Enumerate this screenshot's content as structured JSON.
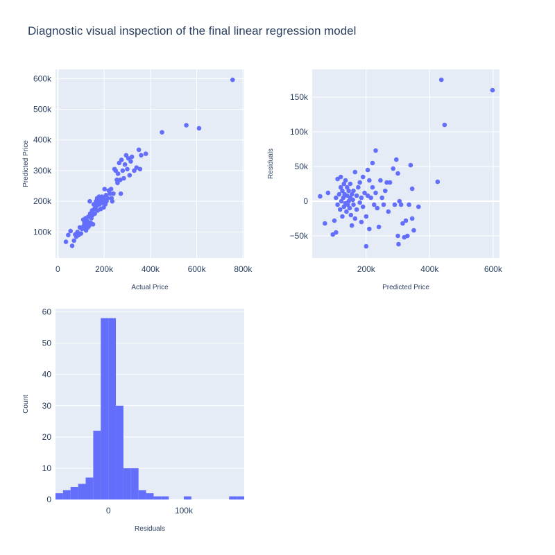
{
  "title": "Diagnostic visual inspection of the final linear regression model",
  "chart_data": [
    {
      "type": "scatter",
      "xlabel": "Actual Price",
      "ylabel": "Predicted Price",
      "xlim": [
        -10000,
        805000
      ],
      "ylim": [
        15000,
        630000
      ],
      "xticks": [
        {
          "v": 0,
          "label": "0"
        },
        {
          "v": 200000,
          "label": "200k"
        },
        {
          "v": 400000,
          "label": "400k"
        },
        {
          "v": 600000,
          "label": "600k"
        },
        {
          "v": 800000,
          "label": "800k"
        }
      ],
      "yticks": [
        {
          "v": 100000,
          "label": "100k"
        },
        {
          "v": 200000,
          "label": "200k"
        },
        {
          "v": 300000,
          "label": "300k"
        },
        {
          "v": 400000,
          "label": "400k"
        },
        {
          "v": 500000,
          "label": "500k"
        },
        {
          "v": 600000,
          "label": "600k"
        }
      ],
      "grid": true,
      "points": [
        [
          35000,
          68000
        ],
        [
          45000,
          90000
        ],
        [
          55000,
          103000
        ],
        [
          62000,
          55000
        ],
        [
          70000,
          72000
        ],
        [
          75000,
          92000
        ],
        [
          80000,
          85000
        ],
        [
          85000,
          100000
        ],
        [
          90000,
          90000
        ],
        [
          95000,
          115000
        ],
        [
          100000,
          95000
        ],
        [
          105000,
          110000
        ],
        [
          110000,
          140000
        ],
        [
          112000,
          120000
        ],
        [
          115000,
          130000
        ],
        [
          118000,
          110000
        ],
        [
          120000,
          145000
        ],
        [
          122000,
          105000
        ],
        [
          125000,
          125000
        ],
        [
          128000,
          135000
        ],
        [
          130000,
          115000
        ],
        [
          132000,
          150000
        ],
        [
          135000,
          120000
        ],
        [
          138000,
          200000
        ],
        [
          140000,
          160000
        ],
        [
          142000,
          130000
        ],
        [
          145000,
          145000
        ],
        [
          148000,
          170000
        ],
        [
          150000,
          155000
        ],
        [
          152000,
          125000
        ],
        [
          155000,
          190000
        ],
        [
          158000,
          175000
        ],
        [
          160000,
          160000
        ],
        [
          162000,
          180000
        ],
        [
          165000,
          200000
        ],
        [
          168000,
          185000
        ],
        [
          170000,
          210000
        ],
        [
          172000,
          170000
        ],
        [
          175000,
          195000
        ],
        [
          178000,
          215000
        ],
        [
          180000,
          190000
        ],
        [
          182000,
          205000
        ],
        [
          185000,
          175000
        ],
        [
          188000,
          200000
        ],
        [
          190000,
          215000
        ],
        [
          192000,
          195000
        ],
        [
          195000,
          210000
        ],
        [
          198000,
          180000
        ],
        [
          200000,
          205000
        ],
        [
          202000,
          240000
        ],
        [
          205000,
          190000
        ],
        [
          208000,
          220000
        ],
        [
          210000,
          200000
        ],
        [
          215000,
          210000
        ],
        [
          220000,
          235000
        ],
        [
          225000,
          225000
        ],
        [
          230000,
          240000
        ],
        [
          232000,
          210000
        ],
        [
          235000,
          200000
        ],
        [
          240000,
          225000
        ],
        [
          245000,
          305000
        ],
        [
          250000,
          300000
        ],
        [
          255000,
          270000
        ],
        [
          258000,
          260000
        ],
        [
          260000,
          290000
        ],
        [
          265000,
          325000
        ],
        [
          270000,
          270000
        ],
        [
          272000,
          225000
        ],
        [
          275000,
          335000
        ],
        [
          280000,
          300000
        ],
        [
          285000,
          275000
        ],
        [
          290000,
          320000
        ],
        [
          295000,
          350000
        ],
        [
          300000,
          305000
        ],
        [
          305000,
          340000
        ],
        [
          310000,
          285000
        ],
        [
          315000,
          330000
        ],
        [
          320000,
          345000
        ],
        [
          330000,
          300000
        ],
        [
          340000,
          310000
        ],
        [
          350000,
          368000
        ],
        [
          355000,
          305000
        ],
        [
          360000,
          350000
        ],
        [
          380000,
          355000
        ],
        [
          450000,
          425000
        ],
        [
          555000,
          448000
        ],
        [
          610000,
          438000
        ],
        [
          755000,
          596000
        ]
      ]
    },
    {
      "type": "scatter",
      "xlabel": "Predicted Price",
      "ylabel": "Residuals",
      "xlim": [
        30000,
        620000
      ],
      "ylim": [
        -82000,
        190000
      ],
      "xticks": [
        {
          "v": 200000,
          "label": "200k"
        },
        {
          "v": 400000,
          "label": "400k"
        },
        {
          "v": 600000,
          "label": "600k"
        }
      ],
      "yticks": [
        {
          "v": -50000,
          "label": "−50k"
        },
        {
          "v": 0,
          "label": "0"
        },
        {
          "v": 50000,
          "label": "50k"
        },
        {
          "v": 100000,
          "label": "100k"
        },
        {
          "v": 150000,
          "label": "150k"
        }
      ],
      "grid": true,
      "points": [
        [
          55000,
          7000
        ],
        [
          70000,
          -32000
        ],
        [
          80000,
          12000
        ],
        [
          95000,
          -48000
        ],
        [
          100000,
          -28000
        ],
        [
          105000,
          -45000
        ],
        [
          105000,
          5000
        ],
        [
          110000,
          32000
        ],
        [
          110000,
          -5000
        ],
        [
          115000,
          10000
        ],
        [
          118000,
          -12000
        ],
        [
          120000,
          20000
        ],
        [
          120000,
          35000
        ],
        [
          122000,
          0
        ],
        [
          125000,
          -22000
        ],
        [
          125000,
          15000
        ],
        [
          128000,
          5000
        ],
        [
          130000,
          25000
        ],
        [
          130000,
          -8000
        ],
        [
          132000,
          10000
        ],
        [
          135000,
          -3000
        ],
        [
          135000,
          30000
        ],
        [
          138000,
          -15000
        ],
        [
          140000,
          8000
        ],
        [
          140000,
          20000
        ],
        [
          142000,
          -5000
        ],
        [
          145000,
          0
        ],
        [
          145000,
          15000
        ],
        [
          148000,
          -10000
        ],
        [
          150000,
          5000
        ],
        [
          150000,
          25000
        ],
        [
          152000,
          -20000
        ],
        [
          155000,
          10000
        ],
        [
          155000,
          -35000
        ],
        [
          158000,
          2000
        ],
        [
          160000,
          15000
        ],
        [
          160000,
          -5000
        ],
        [
          165000,
          42000
        ],
        [
          165000,
          -25000
        ],
        [
          170000,
          8000
        ],
        [
          170000,
          -12000
        ],
        [
          175000,
          20000
        ],
        [
          180000,
          -2000
        ],
        [
          180000,
          27000
        ],
        [
          185000,
          5000
        ],
        [
          185000,
          -30000
        ],
        [
          190000,
          35000
        ],
        [
          190000,
          -8000
        ],
        [
          195000,
          12000
        ],
        [
          200000,
          -65000
        ],
        [
          200000,
          -22000
        ],
        [
          205000,
          8000
        ],
        [
          205000,
          45000
        ],
        [
          210000,
          -40000
        ],
        [
          210000,
          30000
        ],
        [
          215000,
          5000
        ],
        [
          220000,
          55000
        ],
        [
          220000,
          20000
        ],
        [
          225000,
          -5000
        ],
        [
          230000,
          73000
        ],
        [
          230000,
          12000
        ],
        [
          235000,
          -10000
        ],
        [
          240000,
          -37000
        ],
        [
          245000,
          30000
        ],
        [
          250000,
          5000
        ],
        [
          255000,
          -5000
        ],
        [
          260000,
          15000
        ],
        [
          265000,
          27000
        ],
        [
          270000,
          -15000
        ],
        [
          275000,
          27000
        ],
        [
          285000,
          47000
        ],
        [
          290000,
          -5000
        ],
        [
          295000,
          60000
        ],
        [
          300000,
          -50000
        ],
        [
          300000,
          40000
        ],
        [
          302000,
          -62000
        ],
        [
          305000,
          0
        ],
        [
          310000,
          -5000
        ],
        [
          315000,
          -32000
        ],
        [
          320000,
          -52000
        ],
        [
          325000,
          -28000
        ],
        [
          330000,
          -50000
        ],
        [
          335000,
          -5000
        ],
        [
          340000,
          52000
        ],
        [
          345000,
          -25000
        ],
        [
          345000,
          18000
        ],
        [
          350000,
          -42000
        ],
        [
          365000,
          -8000
        ],
        [
          425000,
          28000
        ],
        [
          437000,
          175000
        ],
        [
          447000,
          110000
        ],
        [
          598000,
          160000
        ]
      ]
    },
    {
      "type": "bar",
      "histogram": true,
      "xlabel": "Residuals",
      "ylabel": "Count",
      "xlim": [
        -70000,
        180000
      ],
      "ylim": [
        0,
        61
      ],
      "xticks": [
        {
          "v": 0,
          "label": "0"
        },
        {
          "v": 100000,
          "label": "100k"
        }
      ],
      "yticks": [
        {
          "v": 0,
          "label": "0"
        },
        {
          "v": 10,
          "label": "10"
        },
        {
          "v": 20,
          "label": "20"
        },
        {
          "v": 30,
          "label": "30"
        },
        {
          "v": 40,
          "label": "40"
        },
        {
          "v": 50,
          "label": "50"
        },
        {
          "v": 60,
          "label": "60"
        }
      ],
      "grid": true,
      "bin_width": 10000,
      "bins": [
        {
          "start": -70000,
          "count": 2
        },
        {
          "start": -60000,
          "count": 3
        },
        {
          "start": -50000,
          "count": 4
        },
        {
          "start": -40000,
          "count": 5
        },
        {
          "start": -30000,
          "count": 7
        },
        {
          "start": -20000,
          "count": 22
        },
        {
          "start": -10000,
          "count": 58
        },
        {
          "start": 0,
          "count": 58
        },
        {
          "start": 10000,
          "count": 30
        },
        {
          "start": 20000,
          "count": 10
        },
        {
          "start": 30000,
          "count": 10
        },
        {
          "start": 40000,
          "count": 3
        },
        {
          "start": 50000,
          "count": 2
        },
        {
          "start": 60000,
          "count": 1
        },
        {
          "start": 70000,
          "count": 1
        },
        {
          "start": 80000,
          "count": 0
        },
        {
          "start": 90000,
          "count": 0
        },
        {
          "start": 100000,
          "count": 1
        },
        {
          "start": 110000,
          "count": 0
        },
        {
          "start": 120000,
          "count": 0
        },
        {
          "start": 130000,
          "count": 0
        },
        {
          "start": 140000,
          "count": 0
        },
        {
          "start": 150000,
          "count": 0
        },
        {
          "start": 160000,
          "count": 1
        },
        {
          "start": 170000,
          "count": 1
        }
      ]
    }
  ]
}
